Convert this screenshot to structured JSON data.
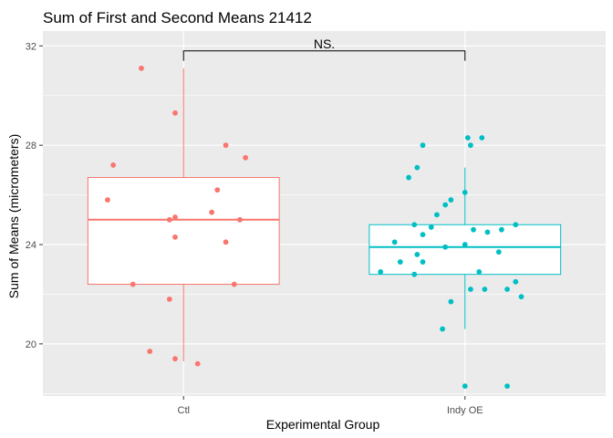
{
  "chart_data": {
    "type": "box",
    "title": "Sum of First and Second Means 21412",
    "xlabel": "Experimental Group",
    "ylabel": "Sum of Means (micrometers)",
    "ylim": [
      17.9,
      32.6
    ],
    "yticks": [
      20,
      24,
      28,
      32
    ],
    "grid": true,
    "categories": [
      "Ctl",
      "Indy OE"
    ],
    "significance": {
      "label": "NS.",
      "y_bracket": 31.8,
      "y_drop": 31.4
    },
    "groups": [
      {
        "category": "Ctl",
        "color": "#F8766D",
        "box": {
          "whisker_low": 19.3,
          "q1": 22.4,
          "median": 25.0,
          "q3": 26.7,
          "whisker_high": 31.1
        },
        "points": [
          [
            -0.15,
            31.1
          ],
          [
            -0.03,
            29.3
          ],
          [
            -0.25,
            27.2
          ],
          [
            0.22,
            27.5
          ],
          [
            0.15,
            28.0
          ],
          [
            -0.27,
            25.8
          ],
          [
            0.12,
            26.2
          ],
          [
            -0.05,
            25.0
          ],
          [
            -0.03,
            25.1
          ],
          [
            0.1,
            25.3
          ],
          [
            -0.03,
            24.3
          ],
          [
            0.15,
            24.1
          ],
          [
            0.18,
            22.4
          ],
          [
            -0.18,
            22.4
          ],
          [
            -0.05,
            21.8
          ],
          [
            -0.12,
            19.7
          ],
          [
            -0.03,
            19.4
          ],
          [
            0.05,
            19.2
          ],
          [
            0.2,
            25.0
          ]
        ]
      },
      {
        "category": "Indy OE",
        "color": "#00BFC4",
        "box": {
          "whisker_low": 20.6,
          "q1": 22.8,
          "median": 23.9,
          "q3": 24.8,
          "whisker_high": 27.1
        },
        "points": [
          [
            -0.15,
            28.0
          ],
          [
            -0.17,
            27.1
          ],
          [
            -0.2,
            26.7
          ],
          [
            0.0,
            26.1
          ],
          [
            -0.05,
            25.8
          ],
          [
            -0.07,
            25.6
          ],
          [
            -0.1,
            25.2
          ],
          [
            -0.18,
            24.8
          ],
          [
            -0.12,
            24.7
          ],
          [
            0.03,
            24.6
          ],
          [
            0.08,
            24.5
          ],
          [
            0.13,
            24.6
          ],
          [
            0.18,
            24.8
          ],
          [
            -0.15,
            24.4
          ],
          [
            -0.25,
            24.1
          ],
          [
            0.0,
            24.0
          ],
          [
            -0.07,
            23.9
          ],
          [
            0.12,
            23.7
          ],
          [
            -0.17,
            23.6
          ],
          [
            -0.23,
            23.3
          ],
          [
            -0.15,
            23.3
          ],
          [
            -0.3,
            22.9
          ],
          [
            -0.18,
            22.8
          ],
          [
            0.05,
            22.9
          ],
          [
            0.18,
            22.5
          ],
          [
            0.02,
            22.2
          ],
          [
            0.07,
            22.2
          ],
          [
            0.15,
            22.2
          ],
          [
            0.2,
            21.9
          ],
          [
            -0.05,
            21.7
          ],
          [
            -0.08,
            20.6
          ],
          [
            0.01,
            28.3
          ],
          [
            0.02,
            28.0
          ],
          [
            0.06,
            28.3
          ],
          [
            0.0,
            18.3
          ],
          [
            0.15,
            18.3
          ]
        ]
      }
    ]
  }
}
